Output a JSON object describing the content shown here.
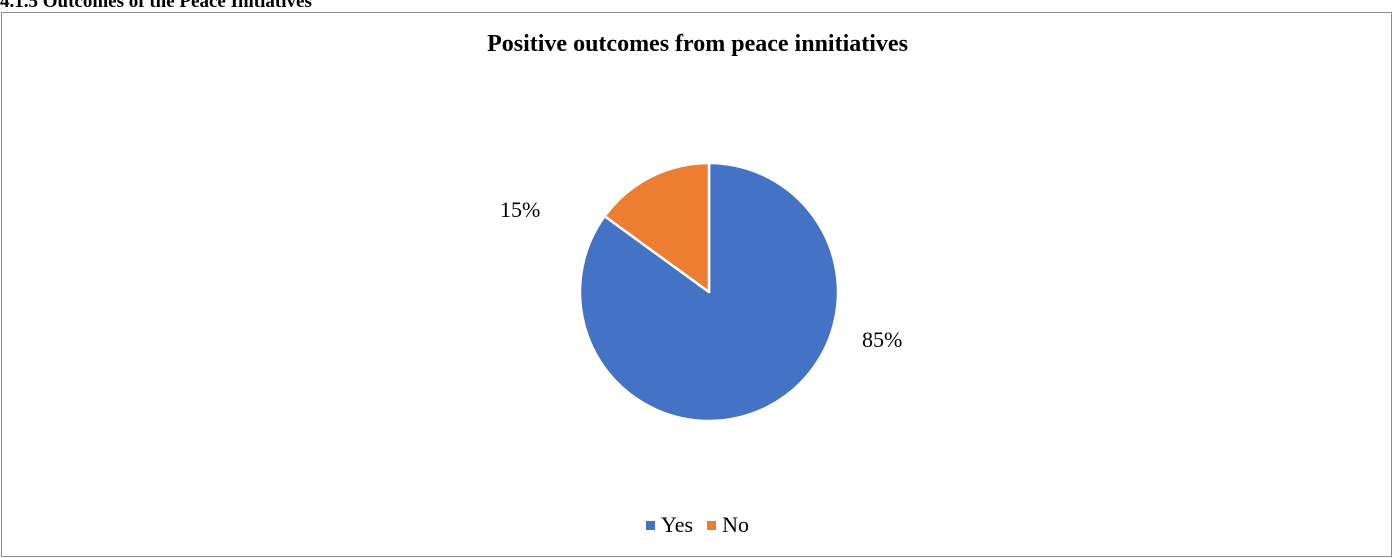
{
  "heading": "4.1.5 Outcomes of the Peace Initiatives",
  "chart_data": {
    "type": "pie",
    "title": "Positive outcomes from peace innitiatives",
    "categories": [
      "Yes",
      "No"
    ],
    "values": [
      85,
      15
    ],
    "labels": [
      "85%",
      "15%"
    ],
    "colors": [
      "#4472C4",
      "#ED7D31"
    ],
    "legend_position": "bottom"
  }
}
